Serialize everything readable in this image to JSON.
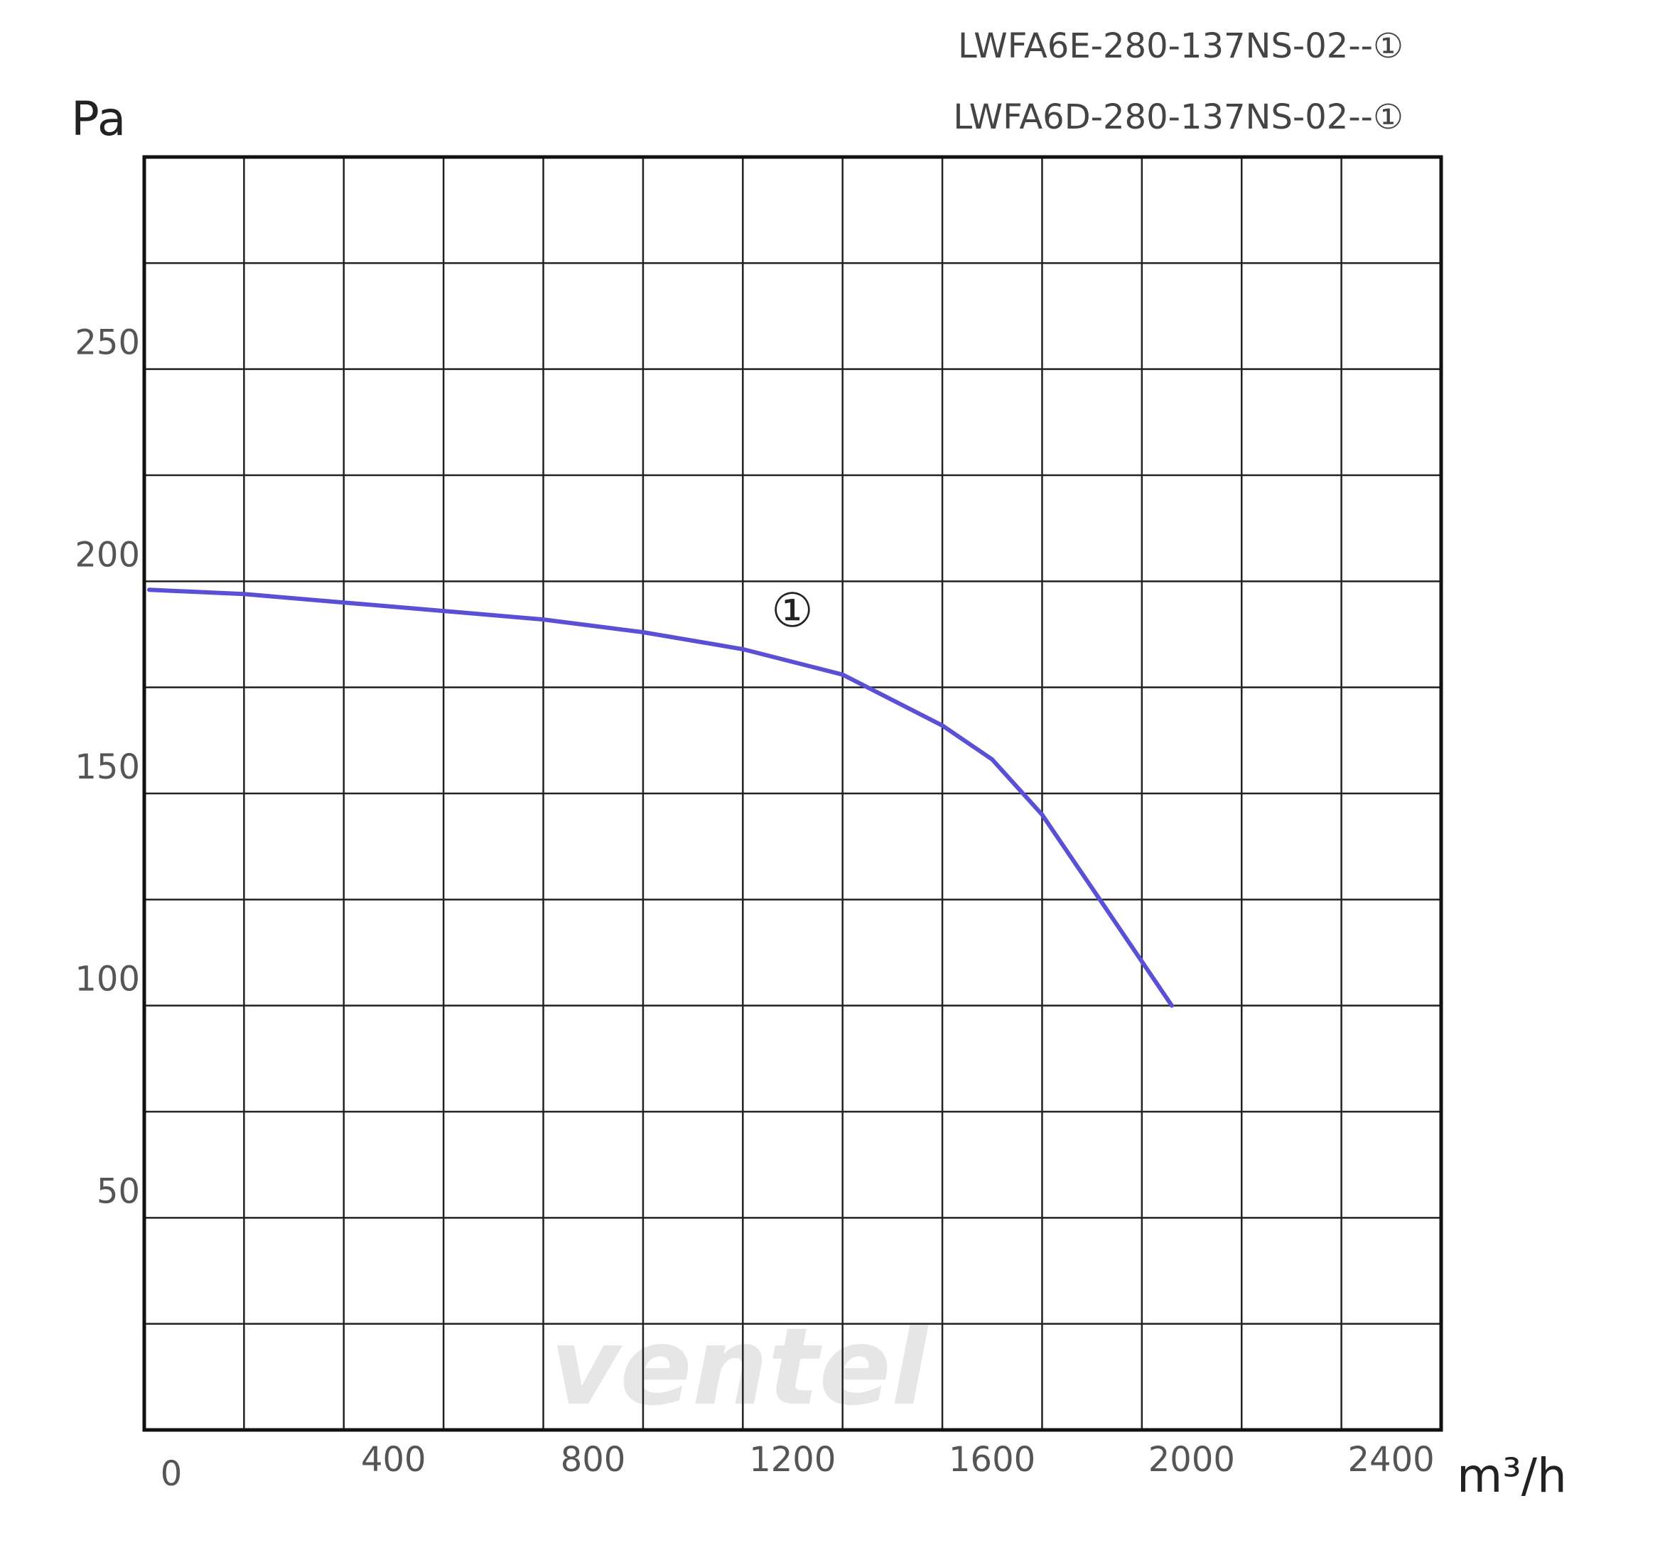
{
  "chart_data": {
    "type": "line",
    "title": [
      "LWFA6E-280-137NS-02--①",
      "LWFA6D-280-137NS-02--①"
    ],
    "y_label": "Pa",
    "x_label": "m³/h",
    "annotation": "①",
    "watermark": "ventel",
    "xlim": [
      0,
      2600
    ],
    "xticks": [
      0,
      {
        "value": 200,
        "label": null
      },
      400,
      {
        "value": 600,
        "label": null
      },
      800,
      {
        "value": 1000,
        "label": null
      },
      1200,
      {
        "value": 1400,
        "label": null
      },
      1600,
      {
        "value": 1800,
        "label": null
      },
      2000,
      {
        "value": 2200,
        "label": null
      },
      2400,
      {
        "value": 2600,
        "label": null
      }
    ],
    "ylim": [
      0,
      300
    ],
    "yticks": [
      {
        "value": 0,
        "label": null
      },
      {
        "value": 25,
        "label": null
      },
      50,
      {
        "value": 75,
        "label": null
      },
      100,
      {
        "value": 125,
        "label": null
      },
      150,
      {
        "value": 175,
        "label": null
      },
      200,
      {
        "value": 225,
        "label": null
      },
      250,
      {
        "value": 275,
        "label": null
      },
      {
        "value": 300,
        "label": null
      }
    ],
    "grid": true,
    "series": [
      {
        "name": "①",
        "color": "#5a50d6",
        "x": [
          10,
          200,
          400,
          600,
          800,
          1000,
          1200,
          1400,
          1600,
          1700,
          1800,
          1910,
          2060
        ],
        "values": [
          198,
          197,
          195,
          193,
          191,
          188,
          184,
          178,
          166,
          158,
          145,
          126,
          100
        ]
      }
    ]
  }
}
